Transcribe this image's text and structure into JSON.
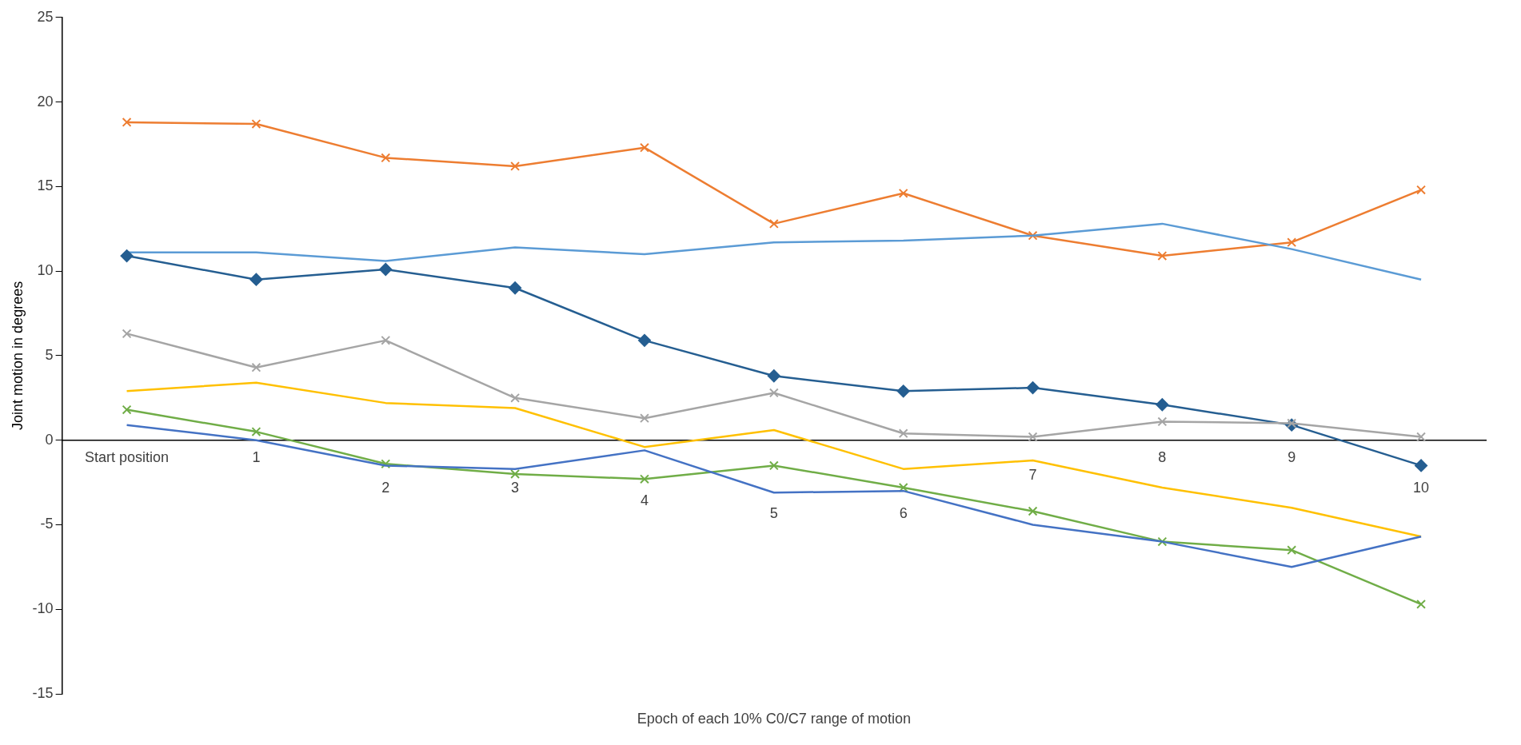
{
  "chart_data": {
    "type": "line",
    "xlabel": "Epoch of each 10% C0/C7 range of motion",
    "ylabel": "Joint motion in degrees",
    "categories": [
      "Start position",
      "1",
      "2",
      "3",
      "4",
      "5",
      "6",
      "7",
      "8",
      "9",
      "10"
    ],
    "ylim": [
      -15,
      25
    ],
    "yticks": [
      -15,
      -10,
      -5,
      0,
      5,
      10,
      15,
      20,
      25
    ],
    "grid": false,
    "legend": false,
    "series": [
      {
        "color": "#ed7d31",
        "marker": "cross",
        "values": [
          18.8,
          18.7,
          16.7,
          16.2,
          17.3,
          12.8,
          14.6,
          12.1,
          10.9,
          11.7,
          14.8
        ]
      },
      {
        "color": "#5b9bd5",
        "marker": "none",
        "values": [
          11.1,
          11.1,
          10.6,
          11.4,
          11.0,
          11.7,
          11.8,
          12.1,
          12.8,
          11.3,
          9.5
        ]
      },
      {
        "color": "#255e91",
        "marker": "diamond",
        "values": [
          10.9,
          9.5,
          10.1,
          9.0,
          5.9,
          3.8,
          2.9,
          3.1,
          2.1,
          0.9,
          -1.5
        ]
      },
      {
        "color": "#a5a5a5",
        "marker": "cross",
        "values": [
          6.3,
          4.3,
          5.9,
          2.5,
          1.3,
          2.8,
          0.4,
          0.2,
          1.1,
          1.0,
          0.2
        ]
      },
      {
        "color": "#ffc000",
        "marker": "none",
        "values": [
          2.9,
          3.4,
          2.2,
          1.9,
          -0.4,
          0.6,
          -1.7,
          -1.2,
          -2.8,
          -4.0,
          -5.7
        ]
      },
      {
        "color": "#70ad47",
        "marker": "cross",
        "values": [
          1.8,
          0.5,
          -1.4,
          -2.0,
          -2.3,
          -1.5,
          -2.8,
          -4.2,
          -6.0,
          -6.5,
          -9.7
        ]
      },
      {
        "color": "#4472c4",
        "marker": "none",
        "values": [
          0.9,
          0.0,
          -1.5,
          -1.7,
          -0.6,
          -3.1,
          -3.0,
          -5.0,
          -6.0,
          -7.5,
          -5.7
        ]
      }
    ]
  }
}
